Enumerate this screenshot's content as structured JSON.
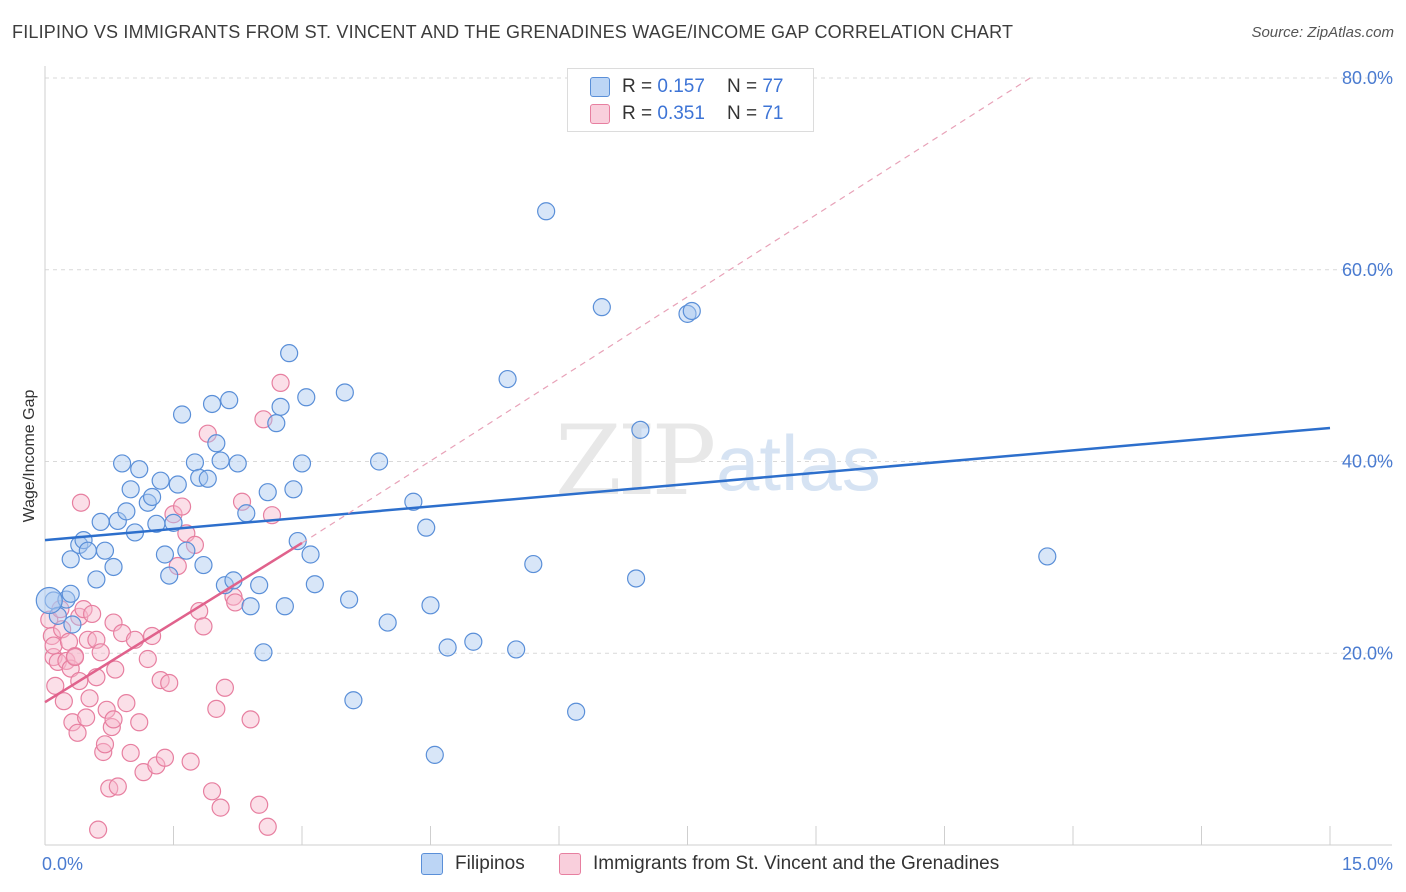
{
  "title": "FILIPINO VS IMMIGRANTS FROM ST. VINCENT AND THE GRENADINES WAGE/INCOME GAP CORRELATION CHART",
  "source": "Source: ZipAtlas.com",
  "colors": {
    "blue_fill": "#a9c8f0",
    "blue_stroke": "#5a8fd8",
    "blue_line": "#2d6fcc",
    "pink_fill": "#f6b8cb",
    "pink_stroke": "#e77fa0",
    "pink_line": "#e0628c",
    "grid": "#d9d9d9",
    "axis_text": "#4a7bd0"
  },
  "legend": {
    "r_label": "R =",
    "n_label": "N =",
    "series": [
      {
        "r": "0.157",
        "n": "77"
      },
      {
        "r": "0.351",
        "n": "71"
      }
    ]
  },
  "watermark": {
    "zip": "ZIP",
    "atlas": "atlas"
  },
  "chart_data": {
    "type": "scatter",
    "xlabel": "",
    "ylabel": "Wage/Income Gap",
    "xlim": [
      0,
      15
    ],
    "ylim": [
      0,
      80
    ],
    "x_tick_labels": [
      "0.0%",
      "15.0%"
    ],
    "y_ticks": [
      20,
      40,
      60,
      80
    ],
    "y_tick_labels": [
      "20.0%",
      "40.0%",
      "60.0%",
      "80.0%"
    ],
    "grid": true,
    "legend_position": "bottom",
    "series": [
      {
        "name": "Filipinos",
        "color": "blue",
        "trend": {
          "x": [
            0.0,
            15.0
          ],
          "y": [
            31.8,
            43.5
          ]
        },
        "points": [
          [
            0.1,
            25.5
          ],
          [
            0.15,
            23.9
          ],
          [
            0.25,
            25.6
          ],
          [
            0.3,
            26.2
          ],
          [
            0.32,
            23
          ],
          [
            0.3,
            29.8
          ],
          [
            0.4,
            31.3
          ],
          [
            0.45,
            31.8
          ],
          [
            0.5,
            30.7
          ],
          [
            0.6,
            27.7
          ],
          [
            0.65,
            33.7
          ],
          [
            0.7,
            30.7
          ],
          [
            0.8,
            29
          ],
          [
            0.85,
            33.8
          ],
          [
            0.9,
            39.8
          ],
          [
            0.95,
            34.8
          ],
          [
            1.0,
            37.1
          ],
          [
            1.05,
            32.6
          ],
          [
            1.1,
            39.2
          ],
          [
            1.2,
            35.7
          ],
          [
            1.25,
            36.3
          ],
          [
            1.3,
            33.5
          ],
          [
            1.35,
            38
          ],
          [
            1.4,
            30.3
          ],
          [
            1.45,
            28.1
          ],
          [
            1.5,
            33.6
          ],
          [
            1.55,
            37.6
          ],
          [
            1.6,
            44.9
          ],
          [
            1.65,
            30.7
          ],
          [
            1.75,
            39.9
          ],
          [
            1.8,
            38.3
          ],
          [
            1.85,
            29.2
          ],
          [
            1.9,
            38.2
          ],
          [
            1.95,
            46
          ],
          [
            2.0,
            41.9
          ],
          [
            2.05,
            40.1
          ],
          [
            2.1,
            27.1
          ],
          [
            2.15,
            46.4
          ],
          [
            2.2,
            27.6
          ],
          [
            2.25,
            39.8
          ],
          [
            2.35,
            34.6
          ],
          [
            2.4,
            24.9
          ],
          [
            2.5,
            27.1
          ],
          [
            2.55,
            20.1
          ],
          [
            2.6,
            36.8
          ],
          [
            2.7,
            44
          ],
          [
            2.75,
            45.7
          ],
          [
            2.8,
            24.9
          ],
          [
            2.85,
            51.3
          ],
          [
            2.9,
            37.1
          ],
          [
            2.95,
            31.7
          ],
          [
            3.0,
            39.8
          ],
          [
            3.05,
            46.7
          ],
          [
            3.1,
            30.3
          ],
          [
            3.15,
            27.2
          ],
          [
            3.5,
            47.2
          ],
          [
            3.55,
            25.6
          ],
          [
            3.6,
            15.1
          ],
          [
            3.9,
            40
          ],
          [
            4.0,
            23.2
          ],
          [
            4.3,
            35.8
          ],
          [
            4.45,
            33.1
          ],
          [
            4.5,
            25
          ],
          [
            4.55,
            9.4
          ],
          [
            4.7,
            20.6
          ],
          [
            5.0,
            21.2
          ],
          [
            5.4,
            48.6
          ],
          [
            5.5,
            20.4
          ],
          [
            5.7,
            29.3
          ],
          [
            5.85,
            66.1
          ],
          [
            6.2,
            13.9
          ],
          [
            6.5,
            56.1
          ],
          [
            6.9,
            27.8
          ],
          [
            6.95,
            43.3
          ],
          [
            7.5,
            55.4
          ],
          [
            7.55,
            55.7
          ],
          [
            11.7,
            30.1
          ]
        ]
      },
      {
        "name": "Immigrants from St. Vincent and the Grenadines",
        "color": "pink",
        "trend": {
          "x": [
            0.0,
            3.0
          ],
          "y": [
            14.9,
            31.5
          ]
        },
        "dashed_extension": {
          "x": [
            3.0,
            11.5
          ],
          "y": [
            31.5,
            80.0
          ]
        },
        "points": [
          [
            0.05,
            23.5
          ],
          [
            0.08,
            21.8
          ],
          [
            0.1,
            19.6
          ],
          [
            0.1,
            20.8
          ],
          [
            0.12,
            16.6
          ],
          [
            0.15,
            19.1
          ],
          [
            0.18,
            24.6
          ],
          [
            0.2,
            22.5
          ],
          [
            0.22,
            15
          ],
          [
            0.25,
            19.2
          ],
          [
            0.28,
            21.2
          ],
          [
            0.3,
            18.4
          ],
          [
            0.32,
            12.8
          ],
          [
            0.35,
            19.7
          ],
          [
            0.38,
            11.7
          ],
          [
            0.4,
            17.1
          ],
          [
            0.4,
            23.8
          ],
          [
            0.42,
            35.7
          ],
          [
            0.45,
            24.6
          ],
          [
            0.48,
            13.3
          ],
          [
            0.5,
            21.4
          ],
          [
            0.52,
            15.3
          ],
          [
            0.55,
            24.1
          ],
          [
            0.6,
            17.5
          ],
          [
            0.6,
            21.4
          ],
          [
            0.62,
            1.6
          ],
          [
            0.65,
            20.1
          ],
          [
            0.68,
            9.7
          ],
          [
            0.7,
            10.5
          ],
          [
            0.72,
            14.1
          ],
          [
            0.75,
            5.9
          ],
          [
            0.78,
            12.3
          ],
          [
            0.8,
            23.2
          ],
          [
            0.8,
            13.1
          ],
          [
            0.82,
            18.3
          ],
          [
            0.85,
            6.1
          ],
          [
            0.9,
            22.1
          ],
          [
            0.95,
            14.8
          ],
          [
            1.0,
            9.6
          ],
          [
            1.05,
            21.4
          ],
          [
            1.1,
            12.8
          ],
          [
            1.15,
            7.6
          ],
          [
            1.2,
            19.4
          ],
          [
            1.25,
            21.8
          ],
          [
            1.3,
            8.3
          ],
          [
            1.35,
            17.2
          ],
          [
            1.4,
            9.1
          ],
          [
            1.45,
            16.9
          ],
          [
            1.5,
            34.5
          ],
          [
            1.55,
            29.1
          ],
          [
            1.6,
            35.3
          ],
          [
            1.65,
            32.5
          ],
          [
            1.7,
            8.7
          ],
          [
            1.75,
            31.3
          ],
          [
            1.8,
            24.4
          ],
          [
            1.85,
            22.8
          ],
          [
            1.9,
            42.9
          ],
          [
            1.95,
            5.6
          ],
          [
            2.0,
            14.2
          ],
          [
            2.05,
            3.9
          ],
          [
            2.1,
            16.4
          ],
          [
            2.2,
            25.9
          ],
          [
            2.22,
            25.3
          ],
          [
            2.3,
            35.8
          ],
          [
            2.4,
            13.1
          ],
          [
            2.5,
            4.2
          ],
          [
            2.55,
            44.4
          ],
          [
            2.6,
            1.9
          ],
          [
            2.65,
            34.4
          ],
          [
            2.75,
            48.2
          ],
          [
            0.35,
            19.6
          ]
        ]
      }
    ]
  }
}
